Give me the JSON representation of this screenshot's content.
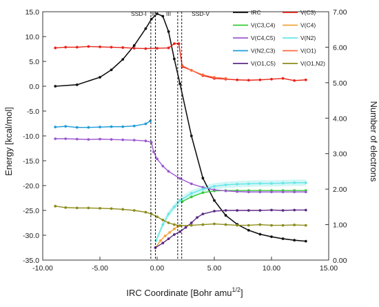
{
  "chart_data": {
    "type": "line",
    "xlabel": "IRC Coordinate [Bohr amu",
    "xlabel_sup": "1/2",
    "xlabel_end": "]",
    "ylabel": "Energy [kcal/mol]",
    "y2label": "Number of electrons",
    "xlim": [
      -10,
      15
    ],
    "ylim": [
      -35,
      15
    ],
    "y2lim": [
      0,
      7
    ],
    "x_ticks": [
      -10,
      -5,
      0,
      5,
      10,
      15
    ],
    "x_tick_labels": [
      "-10.00",
      "-5.00",
      "0.00",
      "5.00",
      "10.00",
      "15.00"
    ],
    "y_ticks": [
      15,
      10,
      5,
      0,
      -5,
      -10,
      -15,
      -20,
      -25,
      -30,
      -35
    ],
    "y_tick_labels": [
      "15.0",
      "10.0",
      "5.0",
      "0.0",
      "-5.0",
      "-10.0",
      "-15.0",
      "-20.0",
      "-25.0",
      "-30.0",
      "-35.0"
    ],
    "y2_ticks": [
      7,
      6,
      5,
      4,
      3,
      2,
      1,
      0
    ],
    "y2_tick_labels": [
      "7.00",
      "6.00",
      "5.00",
      "4.00",
      "3.00",
      "2.00",
      "1.00",
      "0.00"
    ],
    "boundaries": [
      -0.55,
      -0.15,
      1.8,
      2.15
    ],
    "region_labels": [
      {
        "text": "SSD-I",
        "x": -1.6
      },
      {
        "text": "II",
        "x": -0.35
      },
      {
        "text": "III",
        "x": 1.0
      },
      {
        "text": "SSD-V",
        "x": 3.8
      }
    ],
    "legend_position": "top-right",
    "series": [
      {
        "name": "IRC",
        "axis": "left",
        "color": "#111111",
        "x": [
          -8.9,
          -7,
          -5,
          -4,
          -3,
          -2,
          -1,
          -0.5,
          0,
          0.5,
          1,
          1.5,
          2,
          3,
          4,
          5,
          6,
          7,
          8,
          9,
          10,
          11,
          12,
          13
        ],
        "y": [
          0.0,
          0.3,
          1.8,
          3.3,
          5.4,
          8.2,
          11.6,
          13.5,
          14.6,
          14.1,
          11.0,
          5.5,
          0.5,
          -10.0,
          -18.5,
          -23.0,
          -26.0,
          -27.8,
          -29.0,
          -29.8,
          -30.3,
          -30.7,
          -31.0,
          -31.2
        ]
      },
      {
        "name": "V(C3)",
        "axis": "right",
        "color": "#e8241b",
        "x": [
          -8.9,
          -8,
          -7,
          -6,
          -5,
          -4,
          -3,
          -2,
          -1,
          0,
          1,
          1.5,
          1.9,
          2.2,
          3,
          4,
          5,
          6,
          7,
          8,
          9,
          10,
          11,
          12,
          13
        ],
        "y": [
          5.98,
          6.0,
          6.0,
          6.02,
          6.01,
          6.0,
          5.99,
          5.97,
          5.96,
          5.97,
          5.98,
          6.1,
          6.1,
          5.45,
          5.35,
          5.2,
          5.12,
          5.1,
          5.08,
          5.07,
          5.08,
          5.1,
          5.12,
          5.06,
          5.08
        ]
      },
      {
        "name": "V(C3,C4)",
        "axis": "right",
        "color": "#33cc33",
        "x": [
          2.2,
          3,
          4,
          5,
          6,
          7,
          8,
          9,
          10,
          11,
          12,
          13
        ],
        "y": [
          1.65,
          1.78,
          1.9,
          1.95,
          1.96,
          1.96,
          1.96,
          1.96,
          1.96,
          1.96,
          1.96,
          1.96
        ]
      },
      {
        "name": "V(C4)",
        "axis": "right",
        "color": "#f2a33a",
        "x": [
          -0.15,
          0.3,
          0.7,
          1.1,
          1.5,
          1.8
        ],
        "y": [
          0.35,
          0.55,
          0.68,
          0.78,
          0.88,
          0.95
        ]
      },
      {
        "name": "V(C4,C5)",
        "axis": "right",
        "color": "#9b59d0",
        "x": [
          -8.9,
          -8,
          -7,
          -6,
          -5,
          -4,
          -3,
          -2,
          -1,
          -0.5,
          -0.3,
          0,
          0.5,
          1,
          2,
          3,
          4,
          5,
          6,
          7,
          8,
          9,
          10,
          11,
          12,
          13
        ],
        "y": [
          3.42,
          3.42,
          3.41,
          3.4,
          3.41,
          3.4,
          3.39,
          3.38,
          3.36,
          3.32,
          3.05,
          2.85,
          2.65,
          2.5,
          2.3,
          2.15,
          2.05,
          1.98,
          1.95,
          1.93,
          1.92,
          1.92,
          1.92,
          1.92,
          1.92,
          1.92
        ]
      },
      {
        "name": "V(N2)",
        "axis": "right",
        "color": "#66e6e6",
        "x": [
          -0.1,
          0.5,
          1,
          1.5,
          2,
          3,
          4,
          5,
          6,
          7,
          8,
          9,
          10,
          11,
          12,
          13
        ],
        "y": [
          0.55,
          1.0,
          1.3,
          1.5,
          1.68,
          1.88,
          2.0,
          2.08,
          2.12,
          2.14,
          2.15,
          2.16,
          2.16,
          2.17,
          2.18,
          2.18
        ]
      },
      {
        "name": "V(N2,C3)",
        "axis": "right",
        "color": "#1e9bd8",
        "x": [
          -8.9,
          -8,
          -7,
          -6,
          -5,
          -4,
          -3,
          -2,
          -1,
          -0.6
        ],
        "y": [
          3.75,
          3.77,
          3.74,
          3.74,
          3.75,
          3.76,
          3.76,
          3.78,
          3.84,
          3.92
        ]
      },
      {
        "name": "V(O1)",
        "axis": "right",
        "color": "#ff6a3d",
        "x": [
          2.2,
          3,
          4,
          5,
          6
        ],
        "y": [
          5.48,
          5.35,
          5.22,
          5.15,
          5.12
        ]
      },
      {
        "name": "V(O1,C5)",
        "axis": "right",
        "color": "#5b2a86",
        "x": [
          -0.15,
          0.5,
          1,
          1.5,
          2,
          2.5,
          3,
          3.5,
          4,
          5,
          6,
          7,
          8,
          9,
          10,
          11,
          12,
          13
        ],
        "y": [
          0.35,
          0.48,
          0.6,
          0.72,
          0.8,
          0.92,
          1.05,
          1.2,
          1.3,
          1.38,
          1.4,
          1.4,
          1.4,
          1.4,
          1.41,
          1.4,
          1.41,
          1.41
        ]
      },
      {
        "name": "V(O1,N2)",
        "axis": "right",
        "color": "#8c8c1a",
        "x": [
          -8.9,
          -8,
          -7,
          -6,
          -5,
          -4,
          -3,
          -2,
          -1,
          -0.5,
          0,
          0.5,
          1,
          1.5,
          2,
          3,
          4,
          5,
          6,
          7,
          8,
          9,
          10,
          11,
          12,
          13
        ],
        "y": [
          1.52,
          1.48,
          1.47,
          1.47,
          1.46,
          1.45,
          1.43,
          1.4,
          1.35,
          1.3,
          1.22,
          1.13,
          1.05,
          1.0,
          0.97,
          0.98,
          1.0,
          1.02,
          1.0,
          0.98,
          0.98,
          1.0,
          0.98,
          0.98,
          0.99,
          0.98
        ]
      }
    ]
  }
}
